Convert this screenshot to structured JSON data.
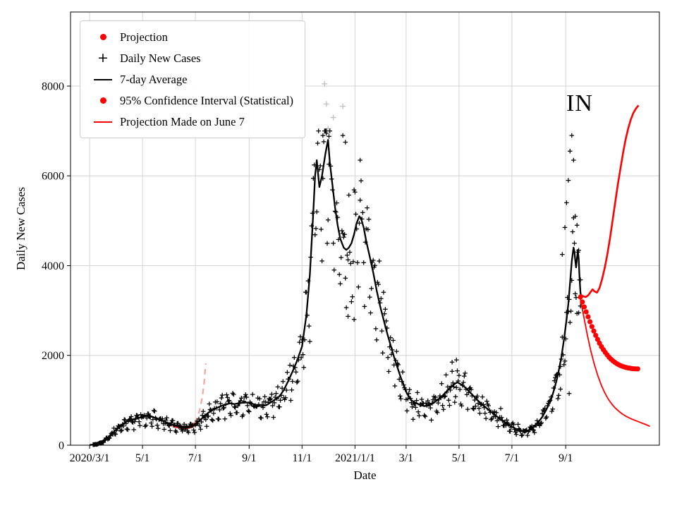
{
  "chart_data": {
    "type": "scatter",
    "annotation": "IN",
    "xlabel": "Date",
    "ylabel": "Daily New Cases",
    "x_units": "day offset from 2020-03-01",
    "x_domain_days": [
      -22,
      657
    ],
    "ylim": [
      0,
      9650
    ],
    "yticks": [
      0,
      2000,
      4000,
      6000,
      8000
    ],
    "xticks": [
      {
        "day": 0,
        "label": "2020/3/1"
      },
      {
        "day": 61,
        "label": "5/1"
      },
      {
        "day": 122,
        "label": "7/1"
      },
      {
        "day": 184,
        "label": "9/1"
      },
      {
        "day": 245,
        "label": "11/1"
      },
      {
        "day": 306,
        "label": "2021/1/1"
      },
      {
        "day": 365,
        "label": "3/1"
      },
      {
        "day": 426,
        "label": "5/1"
      },
      {
        "day": 487,
        "label": "7/1"
      },
      {
        "day": 549,
        "label": "9/1"
      }
    ],
    "grid": true,
    "colors": {
      "daily": "#000000",
      "avg": "#000000",
      "projection": "#ff0000",
      "old_projection": "#f3a6a2",
      "excluded": "#c2c2c2",
      "grid": "#d4d4d4"
    },
    "legend": {
      "position": "upper-left",
      "items": [
        {
          "marker": "dot",
          "label": "Projection"
        },
        {
          "marker": "plus",
          "label": "Daily New Cases"
        },
        {
          "marker": "line-black",
          "label": "7-day Average"
        },
        {
          "marker": "dot",
          "label": "95% Confidence Interval (Statistical)"
        },
        {
          "marker": "line-red",
          "label": "Projection Made on June 7"
        }
      ]
    },
    "series": {
      "avg": {
        "name": "7-day Average",
        "points": [
          [
            0,
            5
          ],
          [
            7,
            18
          ],
          [
            14,
            60
          ],
          [
            21,
            170
          ],
          [
            28,
            300
          ],
          [
            35,
            430
          ],
          [
            42,
            520
          ],
          [
            49,
            565
          ],
          [
            56,
            600
          ],
          [
            63,
            640
          ],
          [
            68,
            665
          ],
          [
            73,
            630
          ],
          [
            78,
            590
          ],
          [
            84,
            545
          ],
          [
            90,
            495
          ],
          [
            96,
            455
          ],
          [
            102,
            425
          ],
          [
            108,
            405
          ],
          [
            113,
            395
          ],
          [
            118,
            425
          ],
          [
            122,
            460
          ],
          [
            127,
            545
          ],
          [
            132,
            645
          ],
          [
            137,
            725
          ],
          [
            142,
            785
          ],
          [
            147,
            835
          ],
          [
            152,
            875
          ],
          [
            157,
            905
          ],
          [
            162,
            935
          ],
          [
            167,
            915
          ],
          [
            172,
            935
          ],
          [
            178,
            950
          ],
          [
            184,
            950
          ],
          [
            189,
            915
          ],
          [
            194,
            880
          ],
          [
            199,
            870
          ],
          [
            204,
            895
          ],
          [
            209,
            955
          ],
          [
            214,
            1015
          ],
          [
            219,
            1090
          ],
          [
            224,
            1230
          ],
          [
            229,
            1430
          ],
          [
            234,
            1640
          ],
          [
            239,
            1870
          ],
          [
            245,
            2200
          ],
          [
            250,
            2900
          ],
          [
            254,
            3800
          ],
          [
            258,
            5200
          ],
          [
            260,
            6000
          ],
          [
            262,
            6350
          ],
          [
            265,
            5750
          ],
          [
            268,
            6000
          ],
          [
            272,
            6500
          ],
          [
            275,
            6800
          ],
          [
            277,
            6300
          ],
          [
            280,
            5800
          ],
          [
            283,
            5300
          ],
          [
            286,
            4900
          ],
          [
            289,
            4600
          ],
          [
            293,
            4400
          ],
          [
            296,
            4350
          ],
          [
            299,
            4400
          ],
          [
            302,
            4500
          ],
          [
            305,
            4700
          ],
          [
            308,
            4950
          ],
          [
            311,
            5100
          ],
          [
            313,
            5050
          ],
          [
            316,
            4850
          ],
          [
            319,
            4550
          ],
          [
            323,
            4200
          ],
          [
            327,
            3850
          ],
          [
            331,
            3450
          ],
          [
            335,
            3100
          ],
          [
            339,
            2800
          ],
          [
            343,
            2500
          ],
          [
            347,
            2230
          ],
          [
            351,
            1970
          ],
          [
            355,
            1730
          ],
          [
            359,
            1500
          ],
          [
            363,
            1300
          ],
          [
            366,
            1150
          ],
          [
            371,
            1000
          ],
          [
            376,
            945
          ],
          [
            381,
            900
          ],
          [
            386,
            870
          ],
          [
            391,
            885
          ],
          [
            396,
            935
          ],
          [
            401,
            1005
          ],
          [
            406,
            1085
          ],
          [
            411,
            1185
          ],
          [
            416,
            1285
          ],
          [
            421,
            1365
          ],
          [
            424,
            1400
          ],
          [
            428,
            1360
          ],
          [
            433,
            1290
          ],
          [
            438,
            1190
          ],
          [
            443,
            1090
          ],
          [
            448,
            990
          ],
          [
            453,
            905
          ],
          [
            458,
            820
          ],
          [
            463,
            745
          ],
          [
            468,
            665
          ],
          [
            473,
            590
          ],
          [
            478,
            515
          ],
          [
            483,
            450
          ],
          [
            487,
            410
          ],
          [
            492,
            360
          ],
          [
            497,
            325
          ],
          [
            502,
            305
          ],
          [
            507,
            330
          ],
          [
            512,
            400
          ],
          [
            517,
            505
          ],
          [
            522,
            630
          ],
          [
            527,
            805
          ],
          [
            532,
            1010
          ],
          [
            536,
            1260
          ],
          [
            540,
            1560
          ],
          [
            544,
            1960
          ],
          [
            547,
            2350
          ],
          [
            550,
            2800
          ],
          [
            552,
            3150
          ],
          [
            554,
            3600
          ],
          [
            556,
            4100
          ],
          [
            558,
            4400
          ],
          [
            559,
            4320
          ],
          [
            560,
            4120
          ],
          [
            561,
            3960
          ],
          [
            562,
            4160
          ],
          [
            563,
            4350
          ],
          [
            564,
            4150
          ],
          [
            565,
            3700
          ],
          [
            566,
            3400
          ],
          [
            567,
            3300
          ]
        ]
      },
      "daily": {
        "name": "Daily New Cases",
        "marker": "plus",
        "seed": 20210918,
        "start_day": 4,
        "end_day": 566,
        "noise_sd": 0.09,
        "max_value": 7000,
        "weekday_factors": [
          1.03,
          0.78,
          0.72,
          0.97,
          1.06,
          1.1,
          1.04
        ],
        "extra_points": [
          [
            269,
            6900
          ],
          [
            273,
            6950
          ],
          [
            276,
            6880
          ],
          [
            292,
            6900
          ],
          [
            295,
            6750
          ],
          [
            298,
            2870
          ],
          [
            305,
            2800
          ],
          [
            312,
            6350
          ],
          [
            418,
            1850
          ],
          [
            423,
            1900
          ],
          [
            543,
            1250
          ],
          [
            545,
            4250
          ],
          [
            548,
            4850
          ],
          [
            550,
            5400
          ],
          [
            552,
            5900
          ],
          [
            553,
            1150
          ],
          [
            554,
            6550
          ],
          [
            556,
            6900
          ],
          [
            558,
            6350
          ],
          [
            560,
            5100
          ],
          [
            562,
            4900
          ],
          [
            564,
            2950
          ],
          [
            566,
            3100
          ]
        ]
      },
      "projection": {
        "name": "Projection",
        "points": [
          [
            566,
            3300
          ],
          [
            569,
            3150
          ],
          [
            572,
            3000
          ],
          [
            575,
            2850
          ],
          [
            578,
            2700
          ],
          [
            581,
            2560
          ],
          [
            584,
            2430
          ],
          [
            587,
            2310
          ],
          [
            590,
            2200
          ],
          [
            593,
            2110
          ],
          [
            596,
            2030
          ],
          [
            599,
            1960
          ],
          [
            602,
            1900
          ],
          [
            605,
            1855
          ],
          [
            608,
            1815
          ],
          [
            611,
            1785
          ],
          [
            614,
            1760
          ],
          [
            617,
            1740
          ],
          [
            620,
            1725
          ],
          [
            623,
            1715
          ],
          [
            626,
            1705
          ],
          [
            629,
            1700
          ],
          [
            632,
            1700
          ],
          [
            634,
            1705
          ]
        ]
      },
      "ci_upper": {
        "name": "95% Confidence Interval (Statistical) upper",
        "points": [
          [
            566,
            3350
          ],
          [
            569,
            3320
          ],
          [
            572,
            3300
          ],
          [
            575,
            3340
          ],
          [
            578,
            3420
          ],
          [
            580,
            3470
          ],
          [
            582,
            3430
          ],
          [
            585,
            3400
          ],
          [
            588,
            3500
          ],
          [
            591,
            3700
          ],
          [
            594,
            3950
          ],
          [
            597,
            4250
          ],
          [
            600,
            4600
          ],
          [
            603,
            5000
          ],
          [
            606,
            5400
          ],
          [
            609,
            5800
          ],
          [
            612,
            6150
          ],
          [
            615,
            6500
          ],
          [
            618,
            6800
          ],
          [
            621,
            7050
          ],
          [
            624,
            7250
          ],
          [
            627,
            7400
          ],
          [
            630,
            7500
          ],
          [
            633,
            7570
          ]
        ]
      },
      "ci_lower": {
        "name": "95% Confidence Interval (Statistical) lower",
        "points": [
          [
            566,
            3250
          ],
          [
            570,
            2850
          ],
          [
            574,
            2450
          ],
          [
            578,
            2100
          ],
          [
            582,
            1800
          ],
          [
            586,
            1550
          ],
          [
            590,
            1340
          ],
          [
            594,
            1170
          ],
          [
            598,
            1030
          ],
          [
            602,
            920
          ],
          [
            606,
            830
          ],
          [
            610,
            760
          ],
          [
            614,
            700
          ],
          [
            618,
            650
          ],
          [
            622,
            610
          ],
          [
            626,
            575
          ],
          [
            630,
            545
          ],
          [
            634,
            515
          ],
          [
            638,
            485
          ],
          [
            642,
            455
          ],
          [
            646,
            420
          ]
        ]
      },
      "projection_june7": {
        "name": "Projection Made on June 7",
        "style": "dashed",
        "points": [
          [
            90,
            445
          ],
          [
            96,
            420
          ],
          [
            102,
            398
          ],
          [
            107,
            382
          ],
          [
            111,
            378
          ],
          [
            115,
            392
          ],
          [
            118,
            425
          ],
          [
            121,
            490
          ],
          [
            124,
            600
          ],
          [
            127,
            790
          ],
          [
            130,
            1080
          ],
          [
            132,
            1380
          ],
          [
            134,
            1820
          ]
        ]
      },
      "projection_june7_dots": {
        "name": "Projection dots from June 7 run",
        "points": [
          [
            98,
            430
          ],
          [
            101,
            420
          ],
          [
            104,
            410
          ],
          [
            107,
            403
          ],
          [
            110,
            398
          ],
          [
            113,
            400
          ],
          [
            116,
            412
          ],
          [
            119,
            435
          ],
          [
            122,
            470
          ]
        ]
      },
      "excluded_points": {
        "name": "Gray excluded daily points",
        "points": [
          [
            271,
            8050
          ],
          [
            273,
            7600
          ],
          [
            275,
            7050
          ],
          [
            281,
            7300
          ],
          [
            292,
            7550
          ]
        ]
      }
    }
  }
}
